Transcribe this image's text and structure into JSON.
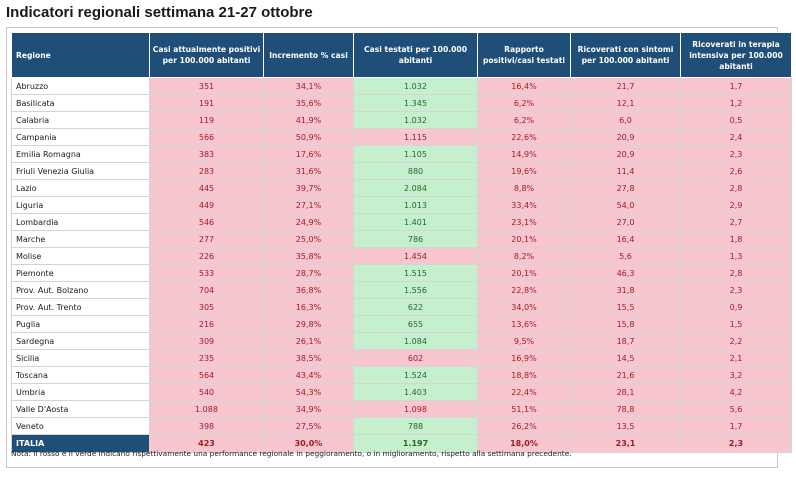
{
  "title": "Indicatori regionali settimana 21-27 ottobre",
  "columns": [
    "Regione",
    "Casi attualmente positivi per 100.000 abitanti",
    "Incremento % casi",
    "Casi testati per 100.000 abitanti",
    "Rapporto positivi/casi testati",
    "Ricoverati con sintomi per 100.000 abitanti",
    "Ricoverati in terapia intensiva per 100.000 abitanti"
  ],
  "rows": [
    {
      "region": "Abruzzo",
      "values": [
        "351",
        "34,1%",
        "1.032",
        "16,4%",
        "21,7",
        "1,7"
      ],
      "status": [
        "red",
        "red",
        "green",
        "red",
        "red",
        "red"
      ]
    },
    {
      "region": "Basilicata",
      "values": [
        "191",
        "35,6%",
        "1.345",
        "6,2%",
        "12,1",
        "1,2"
      ],
      "status": [
        "red",
        "red",
        "green",
        "red",
        "red",
        "red"
      ]
    },
    {
      "region": "Calabria",
      "values": [
        "119",
        "41,9%",
        "1.032",
        "6,2%",
        "6,0",
        "0,5"
      ],
      "status": [
        "red",
        "red",
        "green",
        "red",
        "red",
        "red"
      ]
    },
    {
      "region": "Campania",
      "values": [
        "566",
        "50,9%",
        "1.115",
        "22,6%",
        "20,9",
        "2,4"
      ],
      "status": [
        "red",
        "red",
        "red",
        "red",
        "red",
        "red"
      ]
    },
    {
      "region": "Emilia Romagna",
      "values": [
        "383",
        "17,6%",
        "1.105",
        "14,9%",
        "20,9",
        "2,3"
      ],
      "status": [
        "red",
        "red",
        "green",
        "red",
        "red",
        "red"
      ]
    },
    {
      "region": "Friuli Venezia Giulia",
      "values": [
        "283",
        "31,6%",
        "880",
        "19,6%",
        "11,4",
        "2,6"
      ],
      "status": [
        "red",
        "red",
        "green",
        "red",
        "red",
        "red"
      ]
    },
    {
      "region": "Lazio",
      "values": [
        "445",
        "39,7%",
        "2.084",
        "8,8%",
        "27,8",
        "2,8"
      ],
      "status": [
        "red",
        "red",
        "green",
        "red",
        "red",
        "red"
      ]
    },
    {
      "region": "Liguria",
      "values": [
        "449",
        "27,1%",
        "1.013",
        "33,4%",
        "54,0",
        "2,9"
      ],
      "status": [
        "red",
        "red",
        "green",
        "red",
        "red",
        "red"
      ]
    },
    {
      "region": "Lombardia",
      "values": [
        "546",
        "24,9%",
        "1.401",
        "23,1%",
        "27,0",
        "2,7"
      ],
      "status": [
        "red",
        "red",
        "green",
        "red",
        "red",
        "red"
      ]
    },
    {
      "region": "Marche",
      "values": [
        "277",
        "25,0%",
        "786",
        "20,1%",
        "16,4",
        "1,8"
      ],
      "status": [
        "red",
        "red",
        "green",
        "red",
        "red",
        "red"
      ]
    },
    {
      "region": "Molise",
      "values": [
        "226",
        "35,8%",
        "1.454",
        "8,2%",
        "5,6",
        "1,3"
      ],
      "status": [
        "red",
        "red",
        "red",
        "red",
        "red",
        "red"
      ]
    },
    {
      "region": "Piemonte",
      "values": [
        "533",
        "28,7%",
        "1.515",
        "20,1%",
        "46,3",
        "2,8"
      ],
      "status": [
        "red",
        "red",
        "green",
        "red",
        "red",
        "red"
      ]
    },
    {
      "region": "Prov. Aut. Bolzano",
      "values": [
        "704",
        "36,8%",
        "1.556",
        "22,8%",
        "31,8",
        "2,3"
      ],
      "status": [
        "red",
        "red",
        "green",
        "red",
        "red",
        "red"
      ]
    },
    {
      "region": "Prov. Aut. Trento",
      "values": [
        "305",
        "16,3%",
        "622",
        "34,0%",
        "15,5",
        "0,9"
      ],
      "status": [
        "red",
        "red",
        "green",
        "red",
        "red",
        "red"
      ]
    },
    {
      "region": "Puglia",
      "values": [
        "216",
        "29,8%",
        "655",
        "13,6%",
        "15,8",
        "1,5"
      ],
      "status": [
        "red",
        "red",
        "green",
        "red",
        "red",
        "red"
      ]
    },
    {
      "region": "Sardegna",
      "values": [
        "309",
        "26,1%",
        "1.084",
        "9,5%",
        "18,7",
        "2,2"
      ],
      "status": [
        "red",
        "red",
        "green",
        "red",
        "red",
        "red"
      ]
    },
    {
      "region": "Sicilia",
      "values": [
        "235",
        "38,5%",
        "602",
        "16,9%",
        "14,5",
        "2,1"
      ],
      "status": [
        "red",
        "red",
        "red",
        "red",
        "red",
        "red"
      ]
    },
    {
      "region": "Toscana",
      "values": [
        "564",
        "43,4%",
        "1.524",
        "18,8%",
        "21,6",
        "3,2"
      ],
      "status": [
        "red",
        "red",
        "green",
        "red",
        "red",
        "red"
      ]
    },
    {
      "region": "Umbria",
      "values": [
        "540",
        "54,3%",
        "1.403",
        "22,4%",
        "28,1",
        "4,2"
      ],
      "status": [
        "red",
        "red",
        "green",
        "red",
        "red",
        "red"
      ]
    },
    {
      "region": "Valle D'Aosta",
      "values": [
        "1.088",
        "34,9%",
        "1.098",
        "51,1%",
        "78,8",
        "5,6"
      ],
      "status": [
        "red",
        "red",
        "red",
        "red",
        "red",
        "red"
      ]
    },
    {
      "region": "Veneto",
      "values": [
        "398",
        "27,5%",
        "788",
        "26,2%",
        "13,5",
        "1,7"
      ],
      "status": [
        "red",
        "red",
        "green",
        "red",
        "red",
        "red"
      ]
    }
  ],
  "total": {
    "region": "ITALIA",
    "values": [
      "423",
      "30,0%",
      "1.197",
      "18,0%",
      "23,1",
      "2,3"
    ],
    "status": [
      "red",
      "red",
      "green",
      "red",
      "red",
      "red"
    ]
  },
  "note": "Nota: Il rosso e il verde indicano rispettivamente una performance regionale in peggioramento, o in miglioramento, rispetto alla settimana precedente.",
  "colors": {
    "header": "#1f4e79",
    "red": "#f7c6cf",
    "green": "#c6efce"
  }
}
